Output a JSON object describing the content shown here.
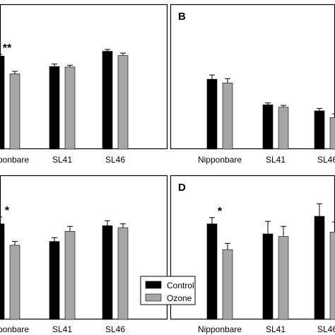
{
  "legend": {
    "items": [
      {
        "label": "Control",
        "color": "#000000"
      },
      {
        "label": "Ozone",
        "color": "#a6a6a6"
      }
    ],
    "placement": "bottom-center"
  },
  "chart_data": [
    {
      "type": "bar",
      "panel_label": "",
      "categories": [
        "Nipponbare",
        "SL41",
        "SL46"
      ],
      "series": [
        {
          "color": "#000000",
          "values": [
            15.3,
            13.6,
            16.1
          ],
          "errors": [
            0.3,
            0.4,
            0.3
          ]
        },
        {
          "color": "#a6a6a6",
          "values": [
            12.4,
            13.5,
            15.4
          ],
          "errors": [
            0.4,
            0.3,
            0.4
          ]
        }
      ],
      "annotations": [
        {
          "category": "Nipponbare",
          "text": "**"
        }
      ],
      "ylim": [
        0,
        20
      ]
    },
    {
      "type": "bar",
      "panel_label": "B",
      "categories": [
        "Nipponbare",
        "SL41",
        "SL46"
      ],
      "series": [
        {
          "color": "#000000",
          "values": [
            11.5,
            7.3,
            6.3
          ],
          "errors": [
            0.7,
            0.3,
            0.4
          ]
        },
        {
          "color": "#a6a6a6",
          "values": [
            10.9,
            6.9,
            5.2
          ],
          "errors": [
            0.7,
            0.3,
            0.6
          ]
        }
      ],
      "annotations": [],
      "ylim": [
        0,
        20
      ]
    },
    {
      "type": "bar",
      "panel_label": "",
      "categories": [
        "Nipponbare",
        "SL41",
        "SL46"
      ],
      "series": [
        {
          "color": "#000000",
          "values": [
            15.2,
            12.4,
            14.9
          ],
          "errors": [
            1.1,
            0.6,
            0.8
          ]
        },
        {
          "color": "#a6a6a6",
          "values": [
            11.8,
            14.0,
            14.6
          ],
          "errors": [
            0.6,
            0.8,
            0.6
          ]
        }
      ],
      "annotations": [
        {
          "category": "Nipponbare",
          "text": "*"
        }
      ],
      "ylim": [
        0,
        20
      ]
    },
    {
      "type": "bar",
      "panel_label": "D",
      "categories": [
        "Nipponbare",
        "SL41",
        "SL46"
      ],
      "series": [
        {
          "color": "#000000",
          "values": [
            15.2,
            13.6,
            16.4
          ],
          "errors": [
            1.0,
            2.0,
            2.0
          ]
        },
        {
          "color": "#a6a6a6",
          "values": [
            11.1,
            13.2,
            13.9
          ],
          "errors": [
            1.0,
            1.6,
            1.6
          ]
        }
      ],
      "annotations": [
        {
          "category": "Nipponbare",
          "text": "*"
        }
      ],
      "ylim": [
        0,
        20
      ]
    }
  ]
}
